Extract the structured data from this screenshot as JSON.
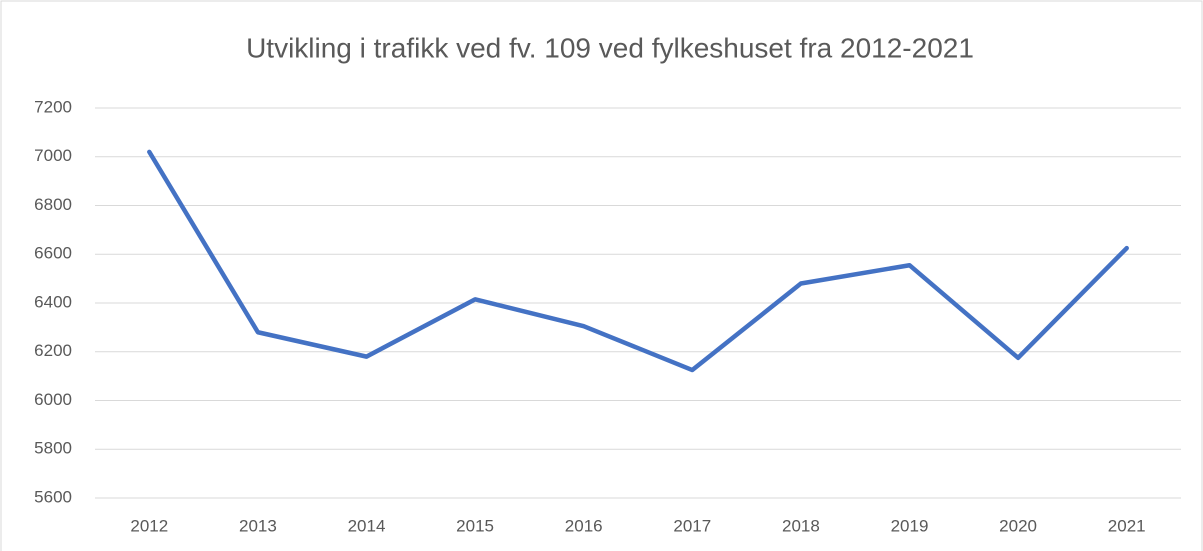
{
  "chart_data": {
    "type": "line",
    "title": "Utvikling i trafikk ved fv. 109 ved fylkeshuset fra 2012-2021",
    "categories": [
      "2012",
      "2013",
      "2014",
      "2015",
      "2016",
      "2017",
      "2018",
      "2019",
      "2020",
      "2021"
    ],
    "values": [
      7020,
      6280,
      6180,
      6415,
      6305,
      6125,
      6480,
      6555,
      6175,
      6625
    ],
    "color": "#4472c4",
    "ylim": [
      5600,
      7200
    ],
    "yticks": [
      5600,
      5800,
      6000,
      6200,
      6400,
      6600,
      6800,
      7000,
      7200
    ],
    "grid": true
  }
}
